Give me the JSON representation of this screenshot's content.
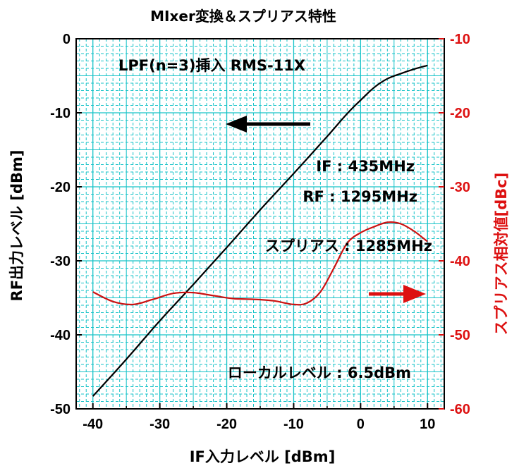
{
  "chart_data": {
    "type": "line",
    "title": "MIxer変換＆スプリアス特性",
    "xlabel": "IF入力レベル [dBm]",
    "ylabel_left": "RF出力レベル [dBm]",
    "ylabel_right": "スプリアス相対値[dBc]",
    "xlim": [
      -42.5,
      12.5
    ],
    "ylim_left": [
      -50,
      0
    ],
    "ylim_right": [
      -60,
      -10
    ],
    "xticks": [
      "-40",
      "-30",
      "-20",
      "-10",
      "0",
      "10"
    ],
    "yticks_left": [
      "-50",
      "-40",
      "-30",
      "-20",
      "-10",
      "0"
    ],
    "yticks_right": [
      "-60",
      "-50",
      "-40",
      "-30",
      "-20",
      "-10"
    ],
    "grid": true,
    "colors": {
      "grid": "#17c3c8",
      "rf_series": "#000000",
      "spur_series": "#cc1111",
      "right_axis": "#dd1111"
    },
    "series": [
      {
        "axis": "left",
        "color": "#000000",
        "x": [
          -40,
          -35,
          -30,
          -25,
          -20,
          -15,
          -10,
          -5,
          -2,
          0,
          2,
          4,
          6,
          8,
          10
        ],
        "y": [
          -48.3,
          -43.3,
          -38.1,
          -33.2,
          -28.2,
          -23.1,
          -18.2,
          -13.2,
          -10.1,
          -8.3,
          -6.6,
          -5.4,
          -4.7,
          -4.1,
          -3.6
        ]
      },
      {
        "axis": "right",
        "color": "#cc1111",
        "x": [
          -40,
          -37,
          -34,
          -31,
          -28,
          -25,
          -22,
          -19,
          -16,
          -13,
          -10,
          -8,
          -6,
          -4,
          -2,
          0,
          2,
          4,
          6,
          8,
          10
        ],
        "y": [
          -44.2,
          -45.5,
          -45.9,
          -45.2,
          -44.4,
          -44.3,
          -44.7,
          -45.1,
          -45.2,
          -45.4,
          -45.9,
          -45.7,
          -44.2,
          -41.0,
          -37.6,
          -36.2,
          -35.4,
          -34.8,
          -35.0,
          -36.0,
          -37.4
        ]
      }
    ],
    "annotations": {
      "filter": "LPF(n=3)挿入 RMS-11X",
      "if_freq": "IF : 435MHz",
      "rf_freq": "RF : 1295MHz",
      "spur_freq": "スプリアス : 1285MHz",
      "lo_level": "ローカルレベル : 6.5dBm"
    }
  }
}
